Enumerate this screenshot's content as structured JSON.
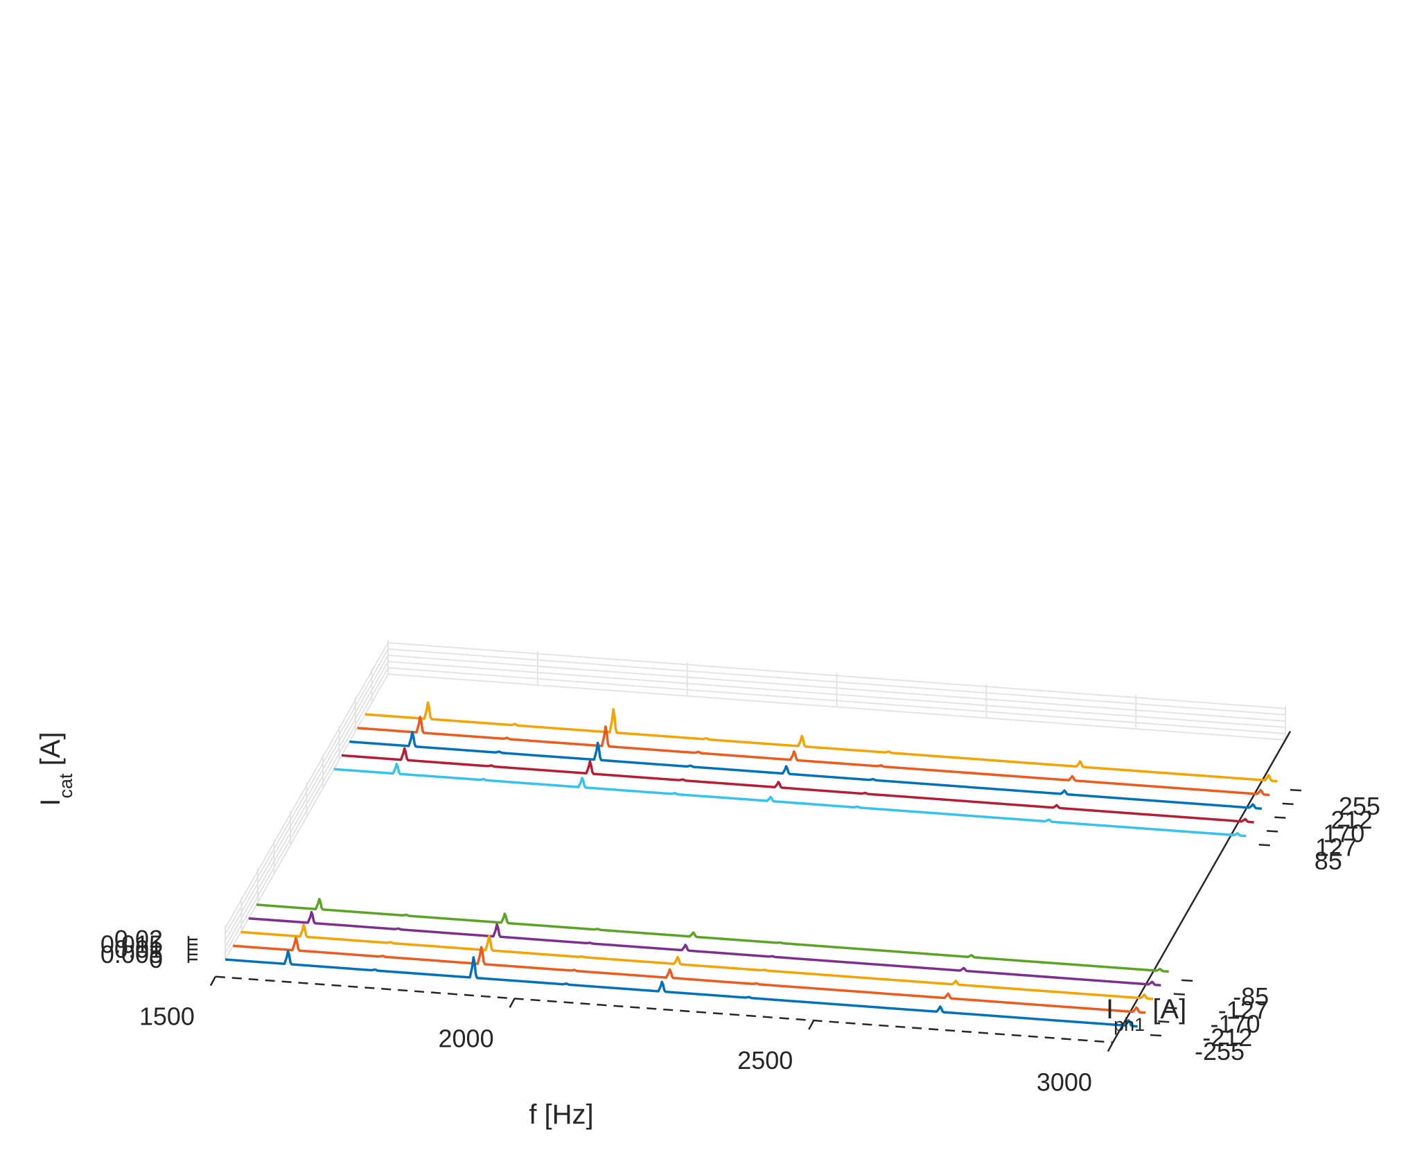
{
  "chart_data": {
    "type": "line",
    "title": "",
    "xlabel": "f [Hz]",
    "ylabel": {
      "main": "I",
      "sub": "ph1",
      "unit": " [A]"
    },
    "zlabel": {
      "main": "I",
      "sub": "cat",
      "unit": " [A]"
    },
    "xlim": [
      1500,
      3000
    ],
    "x_ticks": [
      1500,
      2000,
      2500,
      3000
    ],
    "x_tick_labels": [
      "1500",
      "2000",
      "2500",
      "3000"
    ],
    "zlim": [
      0,
      0.02
    ],
    "z_ticks": [
      0,
      0.005,
      0.01,
      0.015,
      0.02
    ],
    "z_tick_labels": [
      "0",
      "0.005",
      "0.01",
      "0.015",
      "0.02"
    ],
    "y_tick_labels_low": [
      "-255",
      "-212",
      "-170",
      "-127",
      "-85"
    ],
    "y_tick_labels_high": [
      "85",
      "127",
      "170",
      "212",
      "255"
    ],
    "grid": true,
    "series": [
      {
        "name": "-255",
        "group": "low",
        "color": "#0072BD",
        "peaks": [
          [
            1605,
            0.0129
          ],
          [
            1750,
            0.0009
          ],
          [
            1915,
            0.0203
          ],
          [
            2070,
            0.0009
          ],
          [
            2230,
            0.0096
          ],
          [
            2375,
            0.0009
          ],
          [
            2695,
            0.0054
          ],
          [
            3010,
            0.0054
          ]
        ]
      },
      {
        "name": "-212",
        "group": "low",
        "color": "#EE5A1C",
        "peaks": [
          [
            1605,
            0.0124
          ],
          [
            1750,
            0.0009
          ],
          [
            1915,
            0.0168
          ],
          [
            2070,
            0.0009
          ],
          [
            2230,
            0.0083
          ],
          [
            2375,
            0.0008
          ],
          [
            2695,
            0.0046
          ],
          [
            3010,
            0.0046
          ]
        ]
      },
      {
        "name": "-170",
        "group": "low",
        "color": "#F5A300",
        "peaks": [
          [
            1605,
            0.0118
          ],
          [
            1750,
            0.0009
          ],
          [
            1915,
            0.0141
          ],
          [
            2070,
            0.0007
          ],
          [
            2230,
            0.007
          ],
          [
            2375,
            0.0007
          ],
          [
            2695,
            0.0036
          ],
          [
            3010,
            0.0036
          ]
        ]
      },
      {
        "name": "-127",
        "group": "low",
        "color": "#7E2F8E",
        "peaks": [
          [
            1605,
            0.0108
          ],
          [
            1750,
            0.0008
          ],
          [
            1915,
            0.0121
          ],
          [
            2070,
            0.0007
          ],
          [
            2230,
            0.0055
          ],
          [
            2375,
            0.0006
          ],
          [
            2695,
            0.0028
          ],
          [
            3010,
            0.0028
          ]
        ]
      },
      {
        "name": "-85",
        "group": "low",
        "color": "#5BA322",
        "peaks": [
          [
            1605,
            0.0103
          ],
          [
            1750,
            0.0009
          ],
          [
            1915,
            0.0092
          ],
          [
            2070,
            0.0008
          ],
          [
            2230,
            0.0042
          ],
          [
            2375,
            0.0006
          ],
          [
            2695,
            0.0019
          ],
          [
            3010,
            0.0019
          ]
        ]
      },
      {
        "name": "85",
        "group": "high",
        "color": "#33C3EE",
        "peaks": [
          [
            1605,
            0.0098
          ],
          [
            1750,
            0.001
          ],
          [
            1915,
            0.0094
          ],
          [
            2070,
            0.001
          ],
          [
            2230,
            0.0041
          ],
          [
            2375,
            0.0009
          ],
          [
            2695,
            0.002
          ],
          [
            3010,
            0.002
          ]
        ]
      },
      {
        "name": "127",
        "group": "high",
        "color": "#B51D35",
        "peaks": [
          [
            1605,
            0.0116
          ],
          [
            1750,
            0.001
          ],
          [
            1915,
            0.0121
          ],
          [
            2070,
            0.001
          ],
          [
            2230,
            0.0054
          ],
          [
            2375,
            0.0009
          ],
          [
            2695,
            0.0026
          ],
          [
            3010,
            0.0026
          ]
        ]
      },
      {
        "name": "170",
        "group": "high",
        "color": "#0072BD",
        "peaks": [
          [
            1605,
            0.014
          ],
          [
            1750,
            0.0011
          ],
          [
            1915,
            0.017
          ],
          [
            2070,
            0.0011
          ],
          [
            2230,
            0.0075
          ],
          [
            2375,
            0.001
          ],
          [
            2695,
            0.0036
          ],
          [
            3010,
            0.0036
          ]
        ]
      },
      {
        "name": "212",
        "group": "high",
        "color": "#EE5A1C",
        "peaks": [
          [
            1605,
            0.0156
          ],
          [
            1750,
            0.0012
          ],
          [
            1915,
            0.0196
          ],
          [
            2070,
            0.0012
          ],
          [
            2230,
            0.0086
          ],
          [
            2375,
            0.0011
          ],
          [
            2695,
            0.0042
          ],
          [
            3010,
            0.0042
          ]
        ]
      },
      {
        "name": "255",
        "group": "high",
        "color": "#F5A300",
        "peaks": [
          [
            1605,
            0.0164
          ],
          [
            1750,
            0.0013
          ],
          [
            1915,
            0.0231
          ],
          [
            2070,
            0.0012
          ],
          [
            2230,
            0.0104
          ],
          [
            2375,
            0.0012
          ],
          [
            2695,
            0.0054
          ],
          [
            3010,
            0.0054
          ]
        ]
      }
    ]
  }
}
